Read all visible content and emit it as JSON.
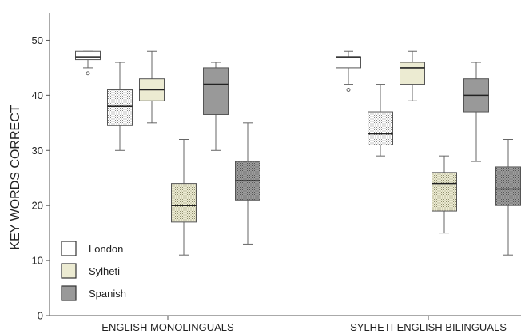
{
  "chart_data": {
    "type": "boxplot",
    "ylabel": "KEY WORDS CORRECT",
    "ylim": [
      0,
      55
    ],
    "yticks": [
      0,
      10,
      20,
      30,
      40,
      50
    ],
    "grid": false,
    "legend_placement": "bottom-left",
    "legend": [
      {
        "name": "London",
        "pattern": "white",
        "color": "#ffffff"
      },
      {
        "name": "Sylheti",
        "pattern": "beige",
        "color": "#ecebd2"
      },
      {
        "name": "Spanish",
        "pattern": "grey",
        "color": "#9a9a9a"
      }
    ],
    "groups": [
      {
        "label": "ENGLISH MONOLINGUALS",
        "boxes": [
          {
            "accent": "London",
            "condition": "clear",
            "pattern": "white",
            "min": 45,
            "q1": 46.5,
            "median": 47,
            "q3": 48,
            "max": 48,
            "outliers": [
              44
            ]
          },
          {
            "accent": "London",
            "condition": "noise",
            "pattern": "white-dotted",
            "min": 30,
            "q1": 34.5,
            "median": 38,
            "q3": 41,
            "max": 46,
            "outliers": []
          },
          {
            "accent": "Sylheti",
            "condition": "clear",
            "pattern": "beige",
            "min": 35,
            "q1": 39,
            "median": 41,
            "q3": 43,
            "max": 48,
            "outliers": []
          },
          {
            "accent": "Sylheti",
            "condition": "noise",
            "pattern": "beige-dotted",
            "min": 11,
            "q1": 17,
            "median": 20,
            "q3": 24,
            "max": 32,
            "outliers": []
          },
          {
            "accent": "Spanish",
            "condition": "clear",
            "pattern": "grey",
            "min": 30,
            "q1": 36.5,
            "median": 42,
            "q3": 45,
            "max": 46,
            "outliers": []
          },
          {
            "accent": "Spanish",
            "condition": "noise",
            "pattern": "grey-dotted",
            "min": 13,
            "q1": 21,
            "median": 24.5,
            "q3": 28,
            "max": 35,
            "outliers": []
          }
        ]
      },
      {
        "label": "SYLHETI-ENGLISH BILINGUALS",
        "boxes": [
          {
            "accent": "London",
            "condition": "clear",
            "pattern": "white",
            "min": 42,
            "q1": 45,
            "median": 47,
            "q3": 47,
            "max": 48,
            "outliers": [
              41
            ]
          },
          {
            "accent": "London",
            "condition": "noise",
            "pattern": "white-dotted",
            "min": 29,
            "q1": 31,
            "median": 33,
            "q3": 37,
            "max": 42,
            "outliers": []
          },
          {
            "accent": "Sylheti",
            "condition": "clear",
            "pattern": "beige",
            "min": 39,
            "q1": 42,
            "median": 45,
            "q3": 46,
            "max": 48,
            "outliers": []
          },
          {
            "accent": "Sylheti",
            "condition": "noise",
            "pattern": "beige-dotted",
            "min": 15,
            "q1": 19,
            "median": 24,
            "q3": 26,
            "max": 29,
            "outliers": []
          },
          {
            "accent": "Spanish",
            "condition": "clear",
            "pattern": "grey",
            "min": 28,
            "q1": 37,
            "median": 40,
            "q3": 43,
            "max": 46,
            "outliers": []
          },
          {
            "accent": "Spanish",
            "condition": "noise",
            "pattern": "grey-dotted",
            "min": 11,
            "q1": 20,
            "median": 23,
            "q3": 27,
            "max": 32,
            "outliers": []
          }
        ]
      }
    ]
  }
}
